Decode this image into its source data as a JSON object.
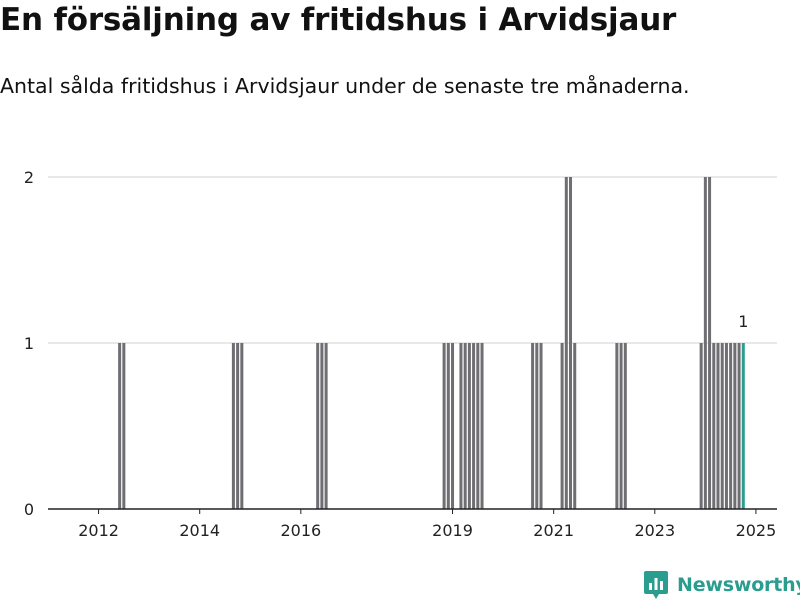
{
  "title": "En försäljning av fritidshus i Arvidsjaur",
  "subtitle": "Antal sålda fritidshus i Arvidsjaur under de senaste tre månaderna.",
  "brand": {
    "name": "Newsworthy",
    "icon": "newsworthy-logo-icon",
    "color": "#2a9d8f"
  },
  "colors": {
    "bar": "#6e6e73",
    "highlight": "#2a9d8f",
    "grid": "#d9d9d9",
    "axis": "#222222"
  },
  "chart_data": {
    "type": "bar",
    "title": "",
    "xlabel": "",
    "ylabel": "",
    "x_axis": "time (monthly)",
    "xlim": [
      "2011-07",
      "2025-12"
    ],
    "ylim": [
      0,
      2
    ],
    "yticks": [
      0,
      1,
      2
    ],
    "xticks": [
      "2012",
      "2014",
      "2016",
      "2019",
      "2021",
      "2023",
      "2025"
    ],
    "grid": "horizontal",
    "legend": "none",
    "series": [
      {
        "values": [
          {
            "x": "2012-12",
            "y": 1
          },
          {
            "x": "2013-01",
            "y": 1
          },
          {
            "x": "2015-03",
            "y": 1
          },
          {
            "x": "2015-04",
            "y": 1
          },
          {
            "x": "2015-05",
            "y": 1
          },
          {
            "x": "2016-11",
            "y": 1
          },
          {
            "x": "2016-12",
            "y": 1
          },
          {
            "x": "2017-01",
            "y": 1
          },
          {
            "x": "2019-05",
            "y": 1
          },
          {
            "x": "2019-06",
            "y": 1
          },
          {
            "x": "2019-07",
            "y": 1
          },
          {
            "x": "2019-09",
            "y": 1
          },
          {
            "x": "2019-10",
            "y": 1
          },
          {
            "x": "2019-11",
            "y": 1
          },
          {
            "x": "2019-12",
            "y": 1
          },
          {
            "x": "2020-01",
            "y": 1
          },
          {
            "x": "2020-02",
            "y": 1
          },
          {
            "x": "2021-02",
            "y": 1
          },
          {
            "x": "2021-03",
            "y": 1
          },
          {
            "x": "2021-04",
            "y": 1
          },
          {
            "x": "2021-09",
            "y": 1
          },
          {
            "x": "2021-10",
            "y": 2
          },
          {
            "x": "2021-11",
            "y": 2
          },
          {
            "x": "2021-12",
            "y": 1
          },
          {
            "x": "2022-10",
            "y": 1
          },
          {
            "x": "2022-11",
            "y": 1
          },
          {
            "x": "2022-12",
            "y": 1
          },
          {
            "x": "2024-06",
            "y": 1
          },
          {
            "x": "2024-07",
            "y": 2
          },
          {
            "x": "2024-08",
            "y": 2
          },
          {
            "x": "2024-09",
            "y": 1
          },
          {
            "x": "2024-10",
            "y": 1
          },
          {
            "x": "2024-11",
            "y": 1
          },
          {
            "x": "2024-12",
            "y": 1
          },
          {
            "x": "2025-01",
            "y": 1
          },
          {
            "x": "2025-02",
            "y": 1
          },
          {
            "x": "2025-03",
            "y": 1
          },
          {
            "x": "2025-04",
            "y": 1,
            "highlight": true,
            "label": "1"
          }
        ]
      }
    ]
  }
}
